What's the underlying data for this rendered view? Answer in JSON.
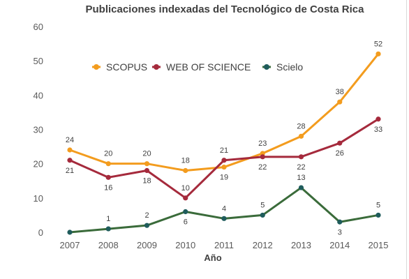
{
  "chart_data": {
    "type": "line",
    "title": "Publicaciones indexadas del Tecnológico de Costa Rica",
    "xlabel": "Año",
    "ylabel": "",
    "categories": [
      "2007",
      "2008",
      "2009",
      "2010",
      "2011",
      "2012",
      "2013",
      "2014",
      "2015"
    ],
    "ylim": [
      0,
      60
    ],
    "yticks": [
      "0",
      "10",
      "20",
      "30",
      "40",
      "50",
      "60"
    ],
    "grid": false,
    "legend_position": "top",
    "series": [
      {
        "name": "SCOPUS",
        "color": "#f39c1e",
        "values": [
          24,
          20,
          20,
          18,
          19,
          23,
          28,
          38,
          52
        ],
        "labels": [
          "24",
          "20",
          "20",
          "18",
          "19",
          "23",
          "28",
          "38",
          "52"
        ]
      },
      {
        "name": "WEB OF SCIENCE",
        "color": "#a52a3c",
        "values": [
          21,
          16,
          18,
          10,
          21,
          22,
          22,
          26,
          33
        ],
        "labels": [
          "21",
          "16",
          "18",
          "10",
          "21",
          "22",
          "22",
          "26",
          "33"
        ]
      },
      {
        "name": "Scielo",
        "color": "#3a6b3a",
        "marker_color": "#1f5c5c",
        "values": [
          0,
          1,
          2,
          6,
          4,
          5,
          13,
          3,
          5
        ],
        "labels": [
          "",
          "1",
          "2",
          "6",
          "4",
          "5",
          "13",
          "3",
          "5"
        ]
      }
    ]
  }
}
